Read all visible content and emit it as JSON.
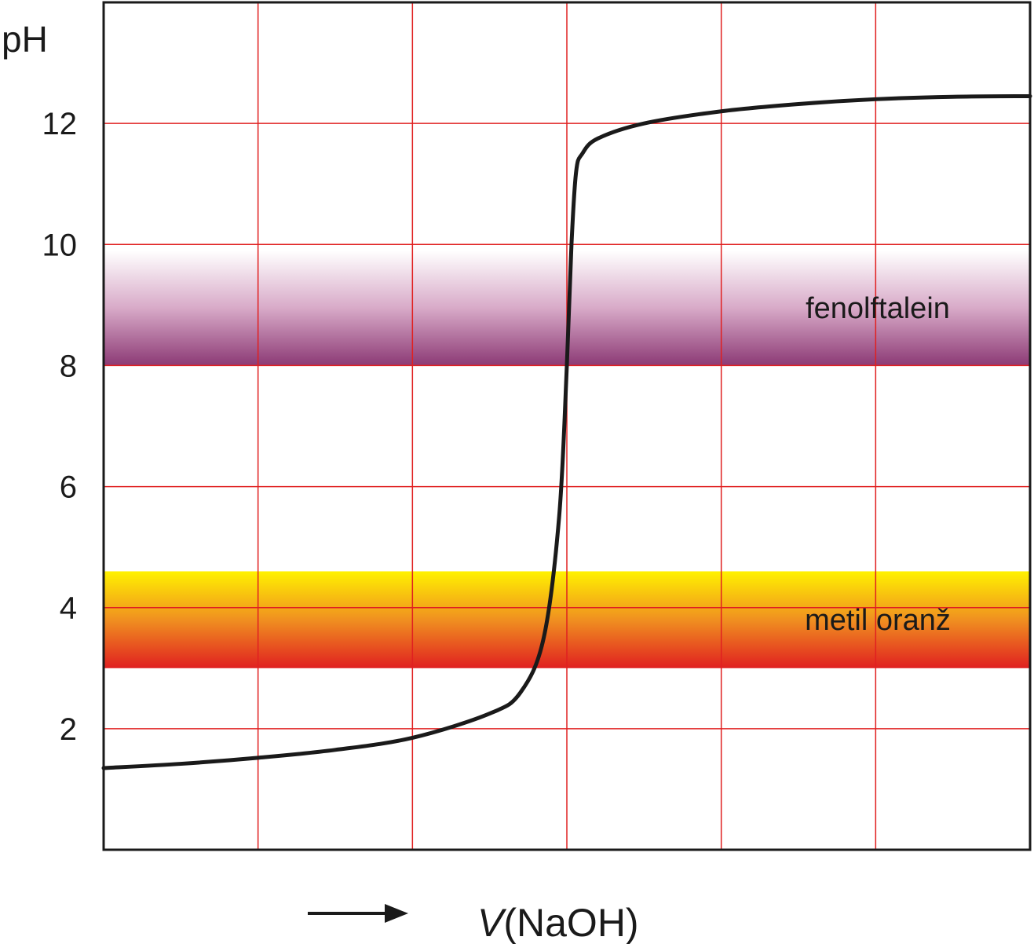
{
  "chart_data": {
    "type": "line",
    "ylabel": "pH",
    "xlabel_italic": "V",
    "xlabel_rest": "(NaOH)",
    "ylim": [
      0,
      14
    ],
    "yticks": [
      2,
      4,
      6,
      8,
      10,
      12
    ],
    "ytick_labels": [
      "2",
      "4",
      "6",
      "8",
      "10",
      "12"
    ],
    "x_gridlines": [
      1,
      2,
      3,
      4,
      5
    ],
    "xlim": [
      0,
      6
    ],
    "grid": true,
    "grid_color": "#e02020",
    "line_color": "#1a1a1a",
    "bands": [
      {
        "label": "fenolftalein",
        "ymin": 8.0,
        "ymax": 9.9,
        "colors": [
          "#ffffff",
          "#d8aac8",
          "#8c3a75"
        ]
      },
      {
        "label": "metil oranž",
        "ymin": 3.0,
        "ymax": 4.6,
        "colors": [
          "#fff200",
          "#f09020",
          "#e02020"
        ]
      }
    ],
    "series": [
      {
        "x": [
          0,
          0.5,
          1,
          1.5,
          2,
          2.5,
          2.7,
          2.85,
          2.95,
          3.0,
          3.03,
          3.06,
          3.1,
          3.2,
          3.5,
          4,
          4.5,
          5,
          5.5,
          6
        ],
        "values": [
          1.35,
          1.42,
          1.52,
          1.65,
          1.85,
          2.25,
          2.6,
          3.5,
          5.5,
          8.0,
          10.0,
          11.2,
          11.5,
          11.75,
          12.0,
          12.2,
          12.32,
          12.4,
          12.44,
          12.45
        ]
      }
    ]
  }
}
